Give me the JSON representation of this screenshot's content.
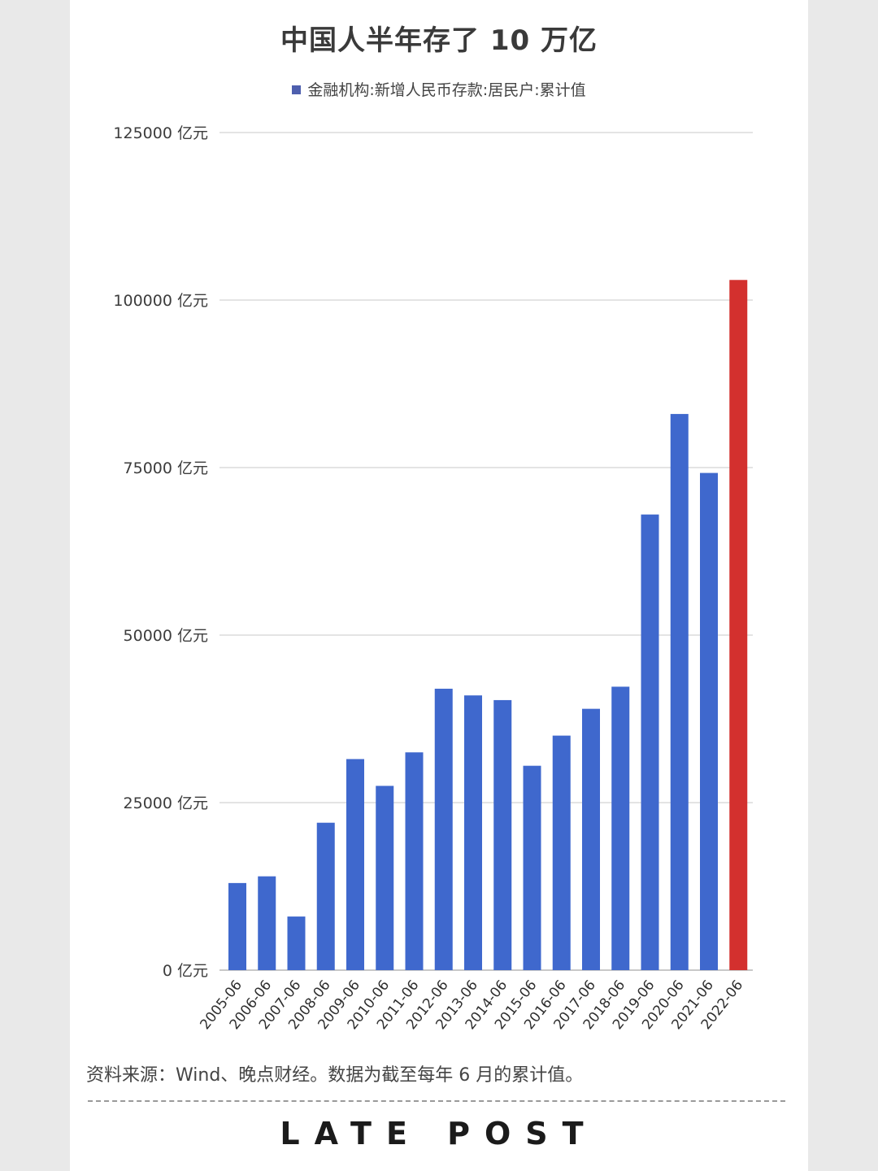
{
  "title": "中国人半年存了 10 万亿",
  "legend_label": "金融机构:新增人民币存款:居民户:累计值",
  "source_note": "资料来源：Wind、晚点财经。数据为截至每年 6 月的累计值。",
  "logo_text": "LATE POST",
  "colors": {
    "bar": "#3f68cd",
    "highlight": "#d3302e",
    "grid": "#dcdcdc",
    "legend": "#4e5fae"
  },
  "chart_data": {
    "type": "bar",
    "categories": [
      "2005-06",
      "2006-06",
      "2007-06",
      "2008-06",
      "2009-06",
      "2010-06",
      "2011-06",
      "2012-06",
      "2013-06",
      "2014-06",
      "2015-06",
      "2016-06",
      "2017-06",
      "2018-06",
      "2019-06",
      "2020-06",
      "2021-06",
      "2022-06"
    ],
    "series": [
      {
        "name": "金融机构:新增人民币存款:居民户:累计值",
        "values": [
          13000,
          14000,
          8000,
          22000,
          31500,
          27500,
          32500,
          42000,
          41000,
          40300,
          30500,
          35000,
          39000,
          42300,
          68000,
          83000,
          74200,
          103000
        ]
      }
    ],
    "highlight_category": "2022-06",
    "ylim": [
      0,
      125000
    ],
    "yticks": [
      0,
      25000,
      50000,
      75000,
      100000,
      125000
    ],
    "ytick_labels": [
      "0 亿元",
      "25000 亿元",
      "50000 亿元",
      "75000 亿元",
      "100000 亿元",
      "125000 亿元"
    ],
    "grid": true,
    "legend_position": "top-center"
  }
}
